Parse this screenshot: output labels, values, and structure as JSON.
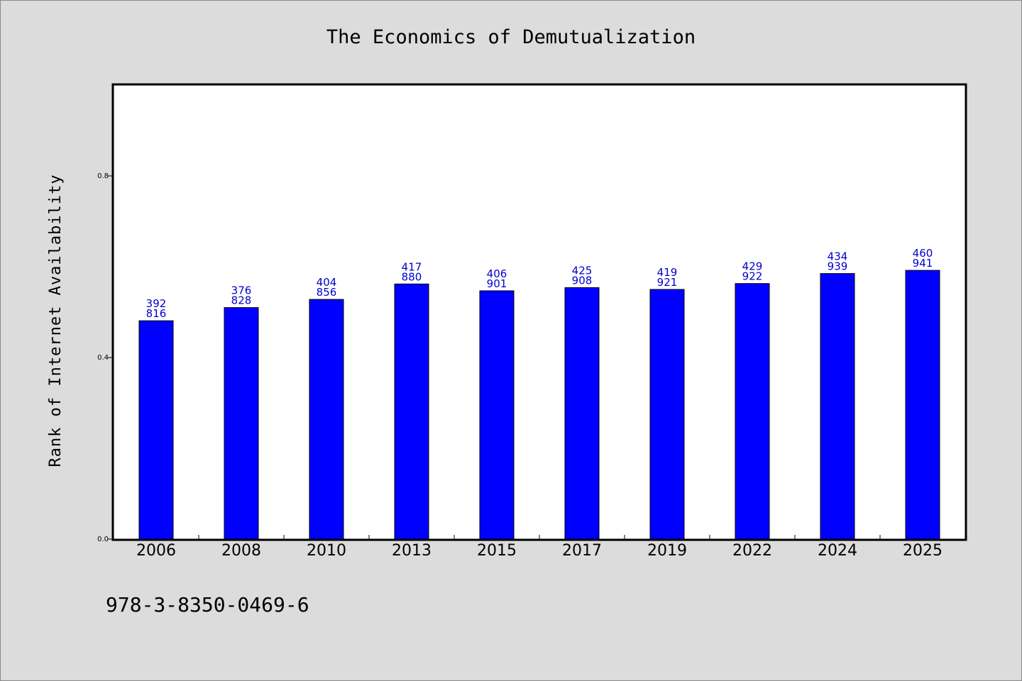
{
  "chart_data": {
    "type": "bar",
    "title": "The Economics of Demutualization",
    "xlabel": "",
    "ylabel": "Rank of Internet Availability",
    "categories": [
      "2006",
      "2008",
      "2010",
      "2013",
      "2015",
      "2017",
      "2019",
      "2022",
      "2024",
      "2025"
    ],
    "values": [
      0.481,
      0.51,
      0.528,
      0.562,
      0.547,
      0.554,
      0.55,
      0.563,
      0.585,
      0.592
    ],
    "data_labels_top": [
      "392",
      "376",
      "404",
      "417",
      "406",
      "425",
      "419",
      "429",
      "434",
      "460"
    ],
    "data_labels_bottom": [
      "816",
      "828",
      "856",
      "880",
      "901",
      "908",
      "921",
      "922",
      "939",
      "941"
    ],
    "ylim": [
      0,
      1.0
    ],
    "yticks": [
      0.0,
      0.4,
      0.8
    ],
    "ytick_labels": [
      "0.0",
      "0.4",
      "0.8"
    ],
    "grid": false,
    "bar_color": "#0000ff",
    "label_color": "#0000cc"
  },
  "footer": {
    "isbn": "978-3-8350-0469-6"
  }
}
